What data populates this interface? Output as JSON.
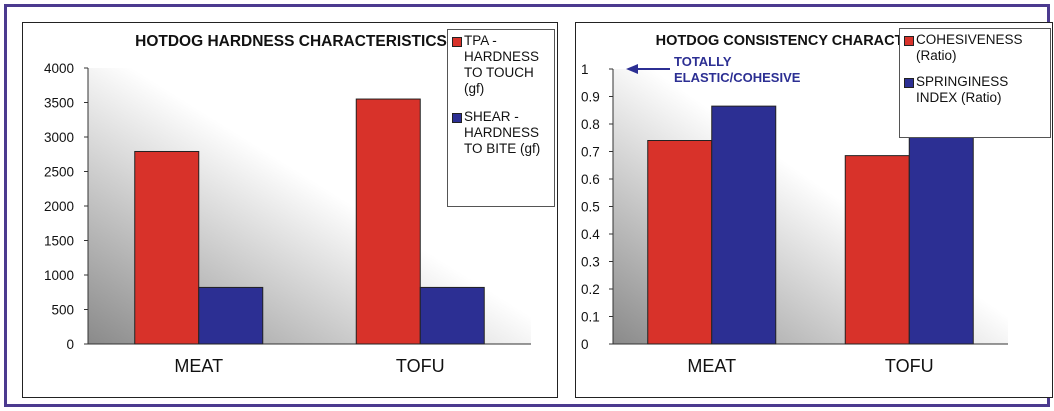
{
  "chart_data": [
    {
      "type": "bar",
      "title": "HOTDOG HARDNESS CHARACTERISTICS",
      "categories": [
        "MEAT",
        "TOFU"
      ],
      "series": [
        {
          "name": "TPA - HARDNESS TO TOUCH (gf)",
          "values": [
            2790,
            3550
          ],
          "color": "#d8322a"
        },
        {
          "name": "SHEAR - HARDNESS TO BITE (gf)",
          "values": [
            820,
            820
          ],
          "color": "#2c2f93"
        }
      ],
      "ylim": [
        0,
        4000
      ],
      "yticks": [
        "0",
        "500",
        "1000",
        "1500",
        "2000",
        "2500",
        "3000",
        "3500",
        "4000"
      ],
      "legend_position": "top-right"
    },
    {
      "type": "bar",
      "title": "HOTDOG CONSISTENCY CHARACTERISTICS",
      "categories": [
        "MEAT",
        "TOFU"
      ],
      "series": [
        {
          "name": "COHESIVENESS (Ratio)",
          "values": [
            0.74,
            0.685
          ],
          "color": "#d8322a"
        },
        {
          "name": "SPRINGINESS INDEX (Ratio)",
          "values": [
            0.865,
            0.76
          ],
          "color": "#2c2f93"
        }
      ],
      "ylim": [
        0,
        1
      ],
      "yticks": [
        "0",
        "0.1",
        "0.2",
        "0.3",
        "0.4",
        "0.5",
        "0.6",
        "0.7",
        "0.8",
        "0.9",
        "1"
      ],
      "annotation": {
        "text_line1": "TOTALLY",
        "text_line2": "ELASTIC/COHESIVE",
        "value": 1,
        "color": "#2c2f93"
      },
      "legend_position": "top-right"
    }
  ]
}
